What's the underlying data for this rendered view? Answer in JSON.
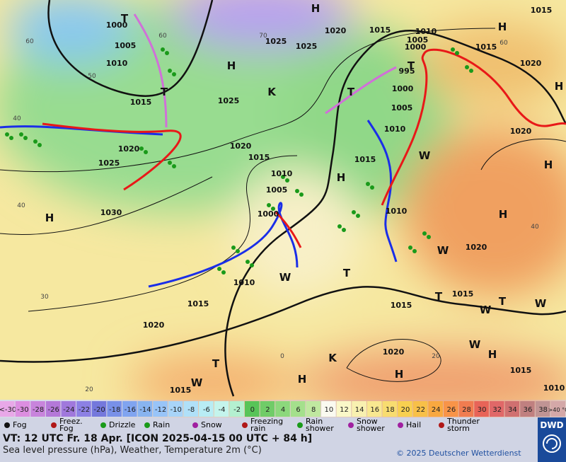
{
  "map": {
    "pressure_labels": [
      "1000",
      "1005",
      "1010",
      "1015",
      "1020",
      "1025",
      "1030",
      "1025",
      "1025",
      "1020",
      "1015",
      "1010",
      "1005",
      "1000",
      "1015",
      "1020",
      "1015",
      "995",
      "1000",
      "1005",
      "1010",
      "1015",
      "1025",
      "1020",
      "1015",
      "1010",
      "1005",
      "1000",
      "1010",
      "1010",
      "1015",
      "1020",
      "1015",
      "1015",
      "1020",
      "1020",
      "1020",
      "1015",
      "1015",
      "1010"
    ],
    "systems": [
      "H",
      "H",
      "H",
      "H",
      "H",
      "H",
      "H",
      "H",
      "H",
      "H",
      "H",
      "T",
      "T",
      "T",
      "T",
      "T",
      "T",
      "T",
      "T",
      "K",
      "K",
      "W",
      "W",
      "W",
      "W",
      "W",
      "W",
      "W"
    ],
    "grid_labels": [
      "60",
      "50",
      "70",
      "60",
      "40",
      "40",
      "30",
      "20",
      "0",
      "20",
      "40",
      "60"
    ]
  },
  "color_scale": {
    "labels": [
      "<-30",
      "-30",
      "-28",
      "-26",
      "-24",
      "-22",
      "-20",
      "-18",
      "-16",
      "-14",
      "-12",
      "-10",
      "-8",
      "-6",
      "-4",
      "-2",
      "0",
      "2",
      "4",
      "6",
      "8",
      "10",
      "12",
      "14",
      "16",
      "18",
      "20",
      "22",
      "24",
      "26",
      "28",
      "30",
      "32",
      "34",
      "36",
      "38",
      ">40 °C"
    ],
    "colors": [
      "#e8a8e8",
      "#dc8ee0",
      "#c884dc",
      "#b478d8",
      "#a078dc",
      "#8c80e4",
      "#7478dc",
      "#7890e8",
      "#80a4f0",
      "#88b4f0",
      "#98c4f8",
      "#a8d4f8",
      "#b0e0f8",
      "#b8ecf4",
      "#c4f4ec",
      "#b4f0d0",
      "#58c458",
      "#70cc68",
      "#8cd87c",
      "#a4e08c",
      "#c0e8a0",
      "#fafaf0",
      "#faf8c8",
      "#f8f0b0",
      "#f8e890",
      "#f8dc70",
      "#f8d050",
      "#f8c048",
      "#f8a840",
      "#f89448",
      "#f07c50",
      "#e86458",
      "#e06868",
      "#d07070",
      "#c08080",
      "#c09494",
      "#d4a8a8"
    ]
  },
  "weather_legend": [
    "Fog",
    "Freez. Fog",
    "Drizzle",
    "Rain",
    "Snow",
    "Freezing rain",
    "Rain shower",
    "Snow shower",
    "Hail",
    "Thunder storm"
  ],
  "footer": {
    "valid_time": "VT: 12 UTC Fr.  18 Apr. [ICON 2025-04-15  00 UTC + 84 h]",
    "description": "Sea level pressure (hPa), Weather, Temperature 2m (°C)",
    "copyright": "© 2025 Deutscher Wetterdienst",
    "logo": "DWD"
  }
}
